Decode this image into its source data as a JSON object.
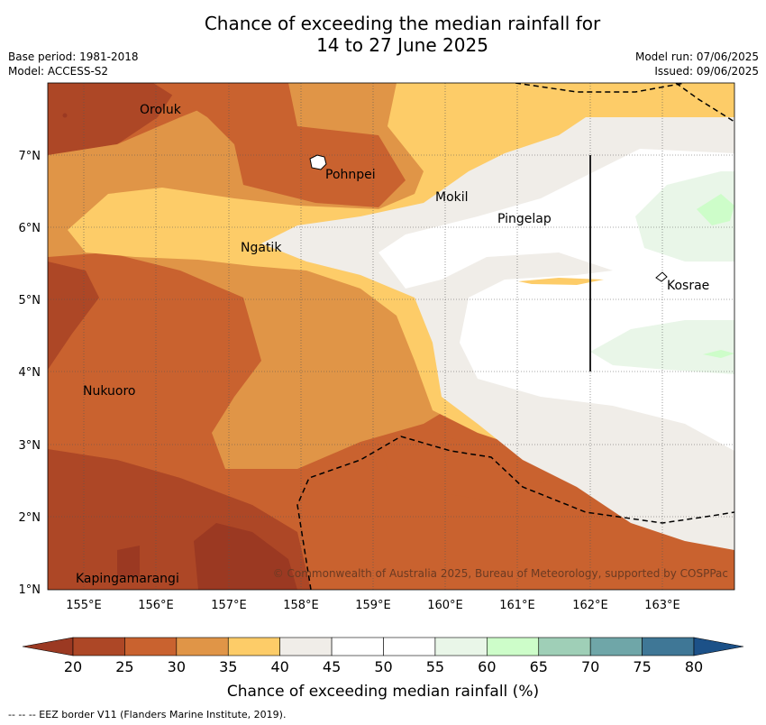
{
  "title": {
    "line1": "Chance of exceeding the median rainfall for",
    "line2": "14 to 27 June 2025"
  },
  "meta": {
    "base_period": "Base period: 1981-2018",
    "model": "Model: ACCESS-S2",
    "model_run": "Model run: 07/06/2025",
    "issued": "Issued: 09/06/2025"
  },
  "map": {
    "lon_ticks": [
      "155°E",
      "156°E",
      "157°E",
      "158°E",
      "159°E",
      "160°E",
      "161°E",
      "162°E",
      "163°E"
    ],
    "lat_ticks": [
      "7°N",
      "6°N",
      "5°N",
      "4°N",
      "3°N",
      "2°N",
      "1°N"
    ],
    "places": [
      {
        "name": "Oroluk"
      },
      {
        "name": "Pohnpei"
      },
      {
        "name": "Mokil"
      },
      {
        "name": "Pingelap"
      },
      {
        "name": "Ngatik"
      },
      {
        "name": "Kosrae"
      },
      {
        "name": "Nukuoro"
      },
      {
        "name": "Kapingamarangi"
      }
    ],
    "copyright": "© Commonwealth of Australia 2025, Bureau of Meteorology, supported by COSPPac"
  },
  "colorbar": {
    "ticks": [
      "20",
      "25",
      "30",
      "35",
      "40",
      "45",
      "50",
      "55",
      "60",
      "65",
      "70",
      "75",
      "80"
    ],
    "colors": {
      "below": "#9b3922",
      "c20_25": "#ad4726",
      "c25_30": "#c9622f",
      "c30_35": "#e09547",
      "c35_40": "#fdcc68",
      "c40_45": "#f0ede8",
      "c45_50": "#ffffff",
      "c50_55": "#ffffff",
      "c55_60": "#e9f6e8",
      "c60_65": "#cdfdc9",
      "c65_70": "#9fcfb7",
      "c70_75": "#6fa6a8",
      "c75_80": "#3f7796",
      "above": "#1c5188"
    },
    "label": "Chance of exceeding median rainfall (%)"
  },
  "footnote": "-- -- -- EEZ border V11 (Flanders Marine Institute, 2019)."
}
